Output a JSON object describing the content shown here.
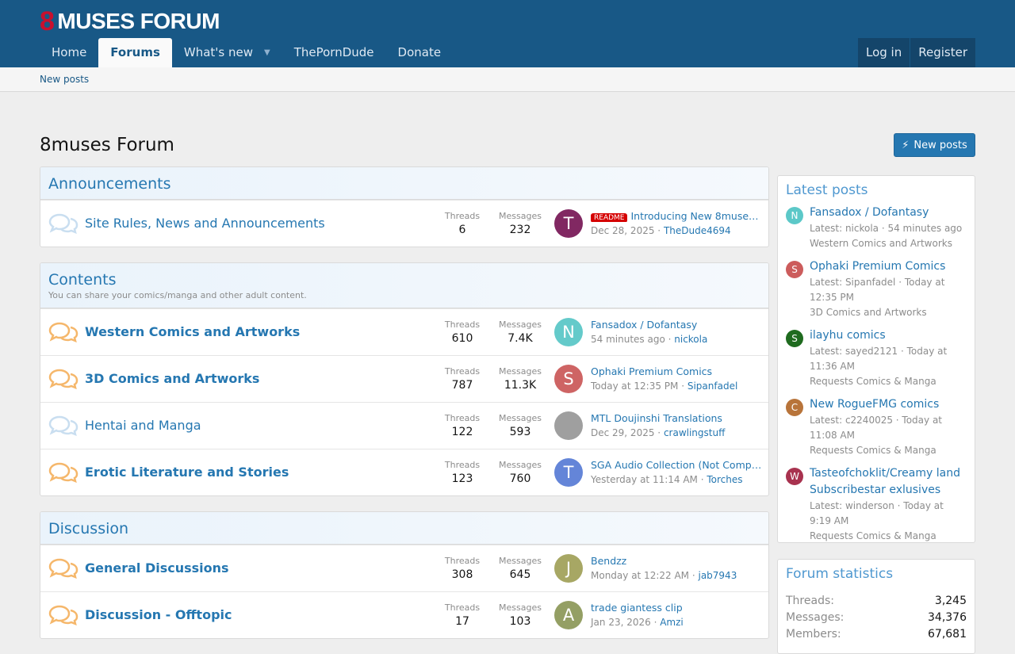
{
  "header": {
    "logo_mark": "8",
    "logo_text": "MUSES FORUM",
    "nav": [
      "Home",
      "Forums",
      "What's new",
      "ThePornDude",
      "Donate"
    ],
    "login": "Log in",
    "register": "Register"
  },
  "subnav": {
    "new_posts": "New posts"
  },
  "page": {
    "title": "8muses Forum",
    "new_posts_button": "New posts"
  },
  "labels": {
    "threads": "Threads",
    "messages": "Messages"
  },
  "categories": [
    {
      "title": "Announcements",
      "desc": "",
      "forums": [
        {
          "name": "Site Rules, News and Announcements",
          "unread": false,
          "threads": "6",
          "messages": "232",
          "avatar_letter": "T",
          "avatar_color": "#7b1d5a",
          "prefix": "README",
          "last_title": "Introducing New 8muses ...",
          "last_date": "Dec 28, 2025",
          "last_user": "TheDude4694"
        }
      ]
    },
    {
      "title": "Contents",
      "desc": "You can share your comics/manga and other adult content.",
      "forums": [
        {
          "name": "Western Comics and Artworks",
          "unread": true,
          "threads": "610",
          "messages": "7.4K",
          "avatar_letter": "N",
          "avatar_color": "#5cc8c8",
          "last_title": "Fansadox / Dofantasy",
          "last_date": "54 minutes ago",
          "last_user": "nickola"
        },
        {
          "name": "3D Comics and Artworks",
          "unread": true,
          "threads": "787",
          "messages": "11.3K",
          "avatar_letter": "S",
          "avatar_color": "#cc5c5c",
          "last_title": "Ophaki Premium Comics",
          "last_date": "Today at 12:35 PM",
          "last_user": "Sipanfadel"
        },
        {
          "name": "Hentai and Manga",
          "unread": false,
          "threads": "122",
          "messages": "593",
          "avatar_letter": "",
          "avatar_color": "#9a9a9a",
          "last_title": "MTL Doujinshi Translations",
          "last_date": "Dec 29, 2025",
          "last_user": "crawlingstuff"
        },
        {
          "name": "Erotic Literature and Stories",
          "unread": true,
          "threads": "123",
          "messages": "760",
          "avatar_letter": "T",
          "avatar_color": "#5c7fd6",
          "last_title": "SGA Audio Collection (Not Complet...",
          "last_date": "Yesterday at 11:14 AM",
          "last_user": "Torches"
        }
      ]
    },
    {
      "title": "Discussion",
      "desc": "",
      "forums": [
        {
          "name": "General Discussions",
          "unread": true,
          "threads": "308",
          "messages": "645",
          "avatar_letter": "J",
          "avatar_color": "#a3a35c",
          "last_title": "Bendzz",
          "last_date": "Monday at 12:22 AM",
          "last_user": "jab7943"
        },
        {
          "name": "Discussion - Offtopic",
          "unread": true,
          "threads": "17",
          "messages": "103",
          "avatar_letter": "A",
          "avatar_color": "#8f9a5c",
          "last_title": "trade giantess clip",
          "last_date": "Jan 23, 2026",
          "last_user": "Amzi"
        }
      ]
    }
  ],
  "latest_posts": {
    "title": "Latest posts",
    "items": [
      {
        "letter": "N",
        "color": "#5cc8c8",
        "title": "Fansadox / Dofantasy",
        "meta": "Latest: nickola · 54 minutes ago",
        "forum": "Western Comics and Artworks"
      },
      {
        "letter": "S",
        "color": "#cc5c5c",
        "title": "Ophaki Premium Comics",
        "meta": "Latest: Sipanfadel · Today at 12:35 PM",
        "forum": "3D Comics and Artworks"
      },
      {
        "letter": "S",
        "color": "#1f6b1f",
        "title": "ilayhu comics",
        "meta": "Latest: sayed2121 · Today at 11:36 AM",
        "forum": "Requests Comics & Manga"
      },
      {
        "letter": "C",
        "color": "#b8743a",
        "title": "New RogueFMG comics",
        "meta": "Latest: c2240025 · Today at 11:08 AM",
        "forum": "Requests Comics & Manga"
      },
      {
        "letter": "W",
        "color": "#a8324f",
        "title": "Tasteofchoklit/Creamy land Subscribestar exlusives",
        "meta": "Latest: winderson · Today at 9:19 AM",
        "forum": "Requests Comics & Manga"
      }
    ]
  },
  "forum_statistics": {
    "title": "Forum statistics",
    "rows": [
      {
        "k": "Threads:",
        "v": "3,245"
      },
      {
        "k": "Messages:",
        "v": "34,376"
      },
      {
        "k": "Members:",
        "v": "67,681"
      }
    ]
  }
}
